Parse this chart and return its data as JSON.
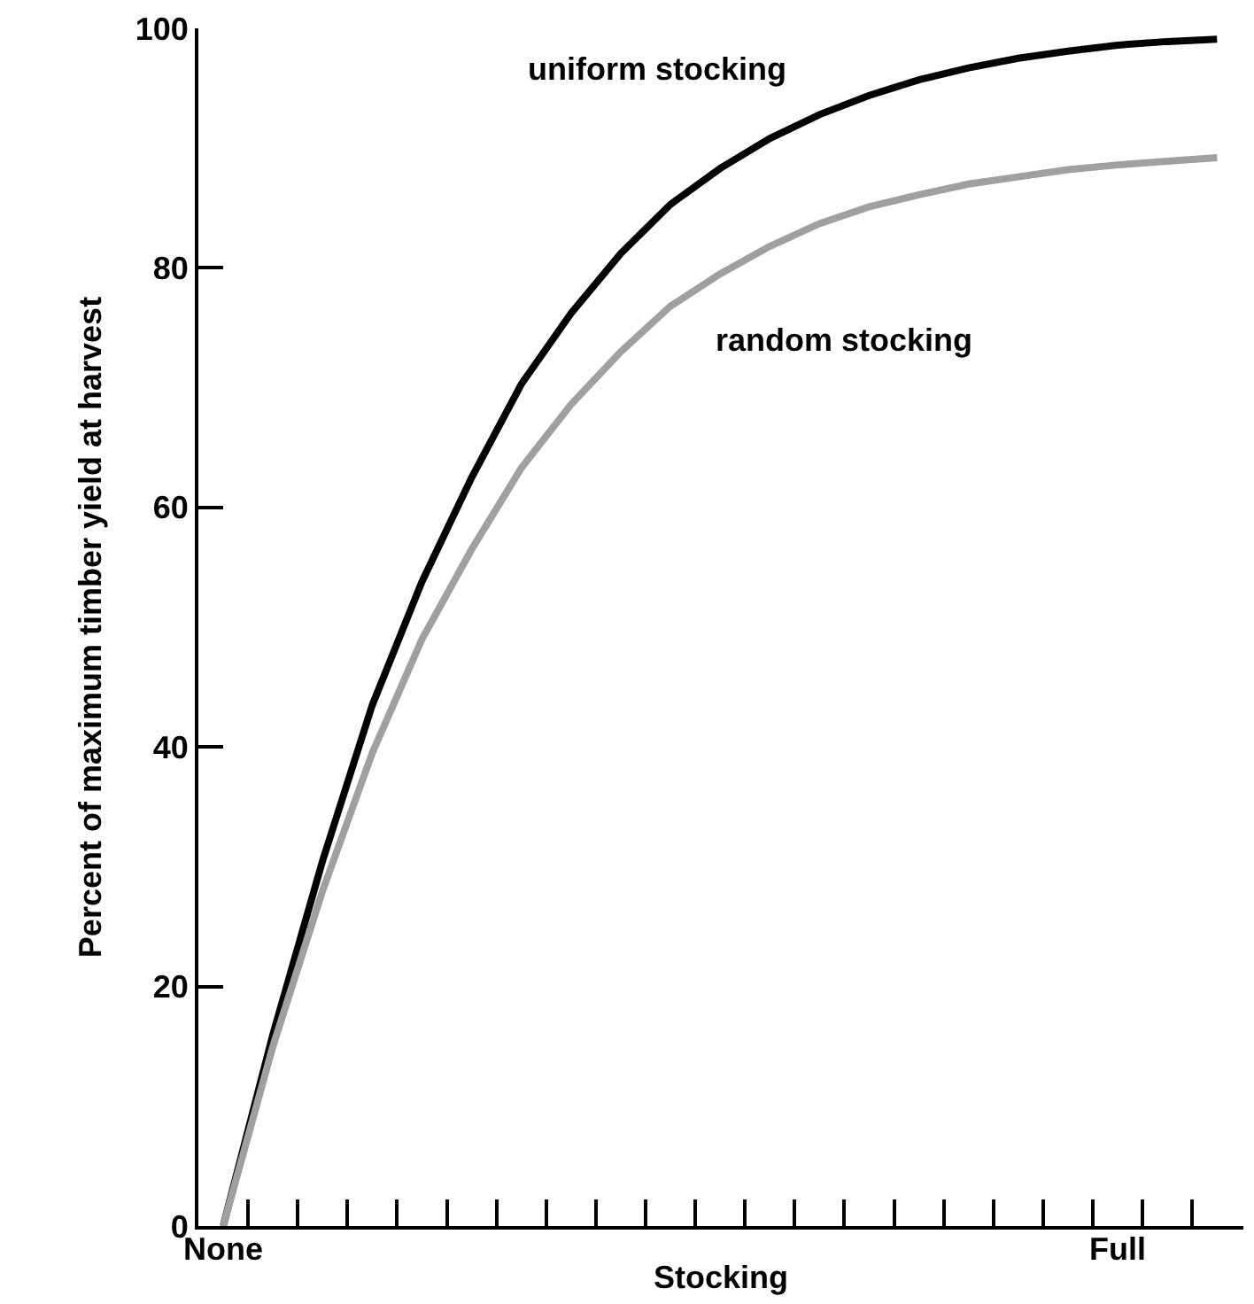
{
  "chart_data": {
    "type": "line",
    "xlabel": "Stocking",
    "ylabel": "Percent of maximum timber yield at harvest",
    "categories": [
      "None",
      null,
      null,
      null,
      null,
      null,
      null,
      null,
      null,
      null,
      null,
      null,
      null,
      null,
      null,
      null,
      null,
      null,
      "Full",
      null,
      null
    ],
    "series": [
      {
        "name": "uniform stocking",
        "color": "#000000",
        "values": [
          0,
          16,
          30.5,
          43.5,
          53.8,
          62.5,
          70.3,
          76.2,
          81.2,
          85.3,
          88.3,
          90.8,
          92.8,
          94.4,
          95.7,
          96.7,
          97.5,
          98.1,
          98.6,
          98.9,
          99.1
        ]
      },
      {
        "name": "random stocking",
        "color": "#a0a0a0",
        "values": [
          0,
          15,
          28,
          39.5,
          49,
          56.5,
          63.3,
          68.6,
          73,
          76.8,
          79.5,
          81.8,
          83.7,
          85.1,
          86.1,
          87,
          87.6,
          88.2,
          88.6,
          88.9,
          89.2
        ]
      }
    ],
    "ylim": [
      0,
      100
    ],
    "yticks": [
      0,
      20,
      40,
      60,
      80,
      100
    ],
    "legend": false,
    "marker": "none",
    "line_style": "solid"
  }
}
